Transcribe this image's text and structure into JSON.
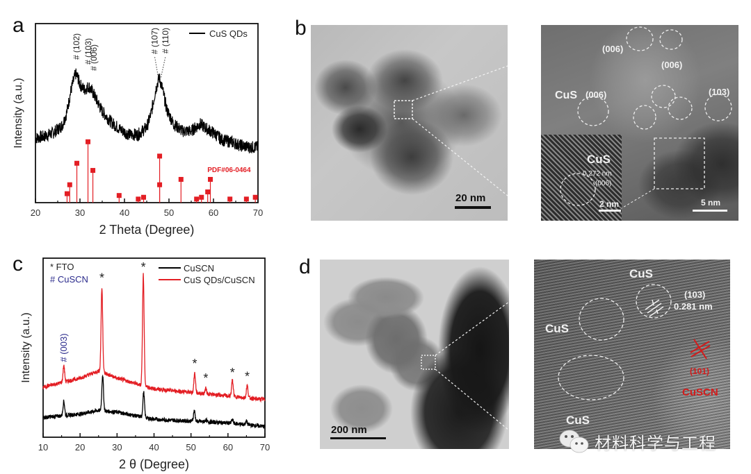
{
  "figure": {
    "panels": {
      "a": {
        "label": "a"
      },
      "b": {
        "label": "b"
      },
      "c": {
        "label": "c"
      },
      "d": {
        "label": "d"
      }
    },
    "tem_b_overview": {
      "scale_bar": "20 nm"
    },
    "tem_b_hrtem": {
      "labels": {
        "cus_main": "CuS",
        "cus_main_plane": "(006)",
        "top_left_plane": "(006)",
        "top_right_plane": "(006)",
        "right_plane": "(103)",
        "inset_title": "CuS",
        "inset_spacing": "0.272 nm",
        "inset_plane": "(006)",
        "inset_scale_bar": "2 nm",
        "scale_bar": "5 nm"
      }
    },
    "tem_d_overview": {
      "scale_bar": "200 nm"
    },
    "tem_d_hrtem": {
      "labels": {
        "cus_top": "CuS",
        "cus_plane": "(103)",
        "cus_spacing": "0.281 nm",
        "cus_left": "CuS",
        "cus_bottom": "CuS",
        "cuscn_plane": "(101)",
        "cuscn_label": "CuSCN"
      },
      "colors": {
        "cuscn": "#d31b1b"
      }
    },
    "watermark": {
      "text": "材料科学与工程",
      "icon": "wechat-icon"
    }
  },
  "chart_data": [
    {
      "id": "a",
      "type": "line",
      "title": "",
      "xlabel": "2 Theta (Degree)",
      "ylabel": "Intensity (a.u.)",
      "xlim": [
        20,
        70
      ],
      "xticks": [
        20,
        30,
        40,
        50,
        60,
        70
      ],
      "ylim": [
        0,
        100
      ],
      "grid": false,
      "legend": {
        "position": "top-right",
        "entries": [
          {
            "name": "CuS QDs",
            "color": "#000000"
          }
        ]
      },
      "series": [
        {
          "name": "CuS QDs",
          "color": "#000000",
          "x": [
            20,
            22,
            24,
            26,
            27,
            28,
            29,
            29.5,
            30,
            31,
            32,
            33,
            34,
            35,
            37,
            39,
            41,
            43,
            45,
            46,
            47,
            47.8,
            48.5,
            49.5,
            51,
            53,
            55,
            57,
            58,
            60,
            62,
            64,
            66,
            68,
            70
          ],
          "y": [
            36,
            37,
            39,
            43,
            50,
            63,
            72,
            70,
            66,
            63,
            65,
            61,
            56,
            51,
            45,
            41,
            38,
            38,
            42,
            50,
            63,
            70,
            64,
            52,
            44,
            40,
            40,
            44,
            42,
            39,
            35,
            34,
            32,
            31,
            31
          ]
        }
      ],
      "reference": {
        "name": "PDF#06-0464",
        "color": "#e31e24",
        "peaks": [
          {
            "x": 27.1,
            "h": 4
          },
          {
            "x": 27.7,
            "h": 9
          },
          {
            "x": 29.3,
            "h": 21
          },
          {
            "x": 31.8,
            "h": 33
          },
          {
            "x": 32.9,
            "h": 17
          },
          {
            "x": 38.8,
            "h": 3
          },
          {
            "x": 43.1,
            "h": 1
          },
          {
            "x": 44.3,
            "h": 2
          },
          {
            "x": 47.9,
            "h": 25
          },
          {
            "x": 47.9,
            "h": 9
          },
          {
            "x": 52.7,
            "h": 12
          },
          {
            "x": 56.2,
            "h": 1
          },
          {
            "x": 57.3,
            "h": 2
          },
          {
            "x": 58.7,
            "h": 5
          },
          {
            "x": 59.3,
            "h": 12
          },
          {
            "x": 63.7,
            "h": 1
          },
          {
            "x": 67.4,
            "h": 1
          },
          {
            "x": 69.4,
            "h": 2
          }
        ]
      },
      "annotations": [
        {
          "text": "# (102)",
          "x": 29.2,
          "rotate": -90
        },
        {
          "text": "# (103)",
          "x": 31.9,
          "rotate": -90
        },
        {
          "text": "# (006)",
          "x": 33.1,
          "rotate": -90
        },
        {
          "text": "# (107)",
          "x": 46.8,
          "rotate": -90
        },
        {
          "text": "# (110)",
          "x": 49.2,
          "rotate": -90
        },
        {
          "text": "PDF#06-0464",
          "x": 63.5,
          "color": "#e31e24"
        }
      ]
    },
    {
      "id": "c",
      "type": "line",
      "title": "",
      "xlabel": "2 θ (Degree)",
      "ylabel": "Intensity (a.u.)",
      "xlim": [
        10,
        70
      ],
      "xticks": [
        10,
        20,
        30,
        40,
        50,
        60,
        70
      ],
      "ylim": [
        0,
        100
      ],
      "grid": false,
      "legend": {
        "position": "top-right",
        "entries": [
          {
            "name": "CuSCN",
            "color": "#000000"
          },
          {
            "name": "CuS QDs/CuSCN",
            "color": "#e31e24"
          }
        ]
      },
      "marker_legend": [
        {
          "symbol": "*",
          "text": "FTO",
          "color": "#222222"
        },
        {
          "symbol": "#",
          "text": "CuSCN",
          "color": "#2b2b8c"
        }
      ],
      "series": [
        {
          "name": "CuSCN",
          "color": "#000000",
          "baseline": [
            [
              10,
              11
            ],
            [
              20,
              13
            ],
            [
              25,
              15
            ],
            [
              30,
              14
            ],
            [
              40,
              10
            ],
            [
              50,
              9
            ],
            [
              60,
              8
            ],
            [
              70,
              6
            ]
          ],
          "peaks": [
            {
              "x": 15.6,
              "h": 8
            },
            {
              "x": 26.1,
              "h": 20
            },
            {
              "x": 37.2,
              "h": 14
            },
            {
              "x": 50.9,
              "h": 6
            },
            {
              "x": 54.0,
              "h": 1
            },
            {
              "x": 61.2,
              "h": 2
            },
            {
              "x": 65.0,
              "h": 2
            }
          ]
        },
        {
          "name": "CuS QDs/CuSCN",
          "color": "#e31e24",
          "baseline": [
            [
              10,
              28
            ],
            [
              20,
              33
            ],
            [
              25,
              37
            ],
            [
              30,
              33
            ],
            [
              40,
              27
            ],
            [
              50,
              25
            ],
            [
              60,
              23
            ],
            [
              70,
              21
            ]
          ],
          "peaks": [
            {
              "x": 15.6,
              "h": 9
            },
            {
              "x": 25.9,
              "h": 47
            },
            {
              "x": 37.1,
              "h": 62
            },
            {
              "x": 51.0,
              "h": 11
            },
            {
              "x": 54.0,
              "h": 3
            },
            {
              "x": 61.2,
              "h": 9
            },
            {
              "x": 65.2,
              "h": 7
            }
          ]
        }
      ],
      "annotations": [
        {
          "text": "# (003)",
          "x": 15.6,
          "color": "#2b2b8c",
          "rotate": -90
        },
        {
          "text": "*",
          "x": 25.9
        },
        {
          "text": "*",
          "x": 37.1
        },
        {
          "text": "*",
          "x": 51.0
        },
        {
          "text": "*",
          "x": 54.0
        },
        {
          "text": "*",
          "x": 61.2
        },
        {
          "text": "*",
          "x": 65.2
        }
      ]
    }
  ]
}
